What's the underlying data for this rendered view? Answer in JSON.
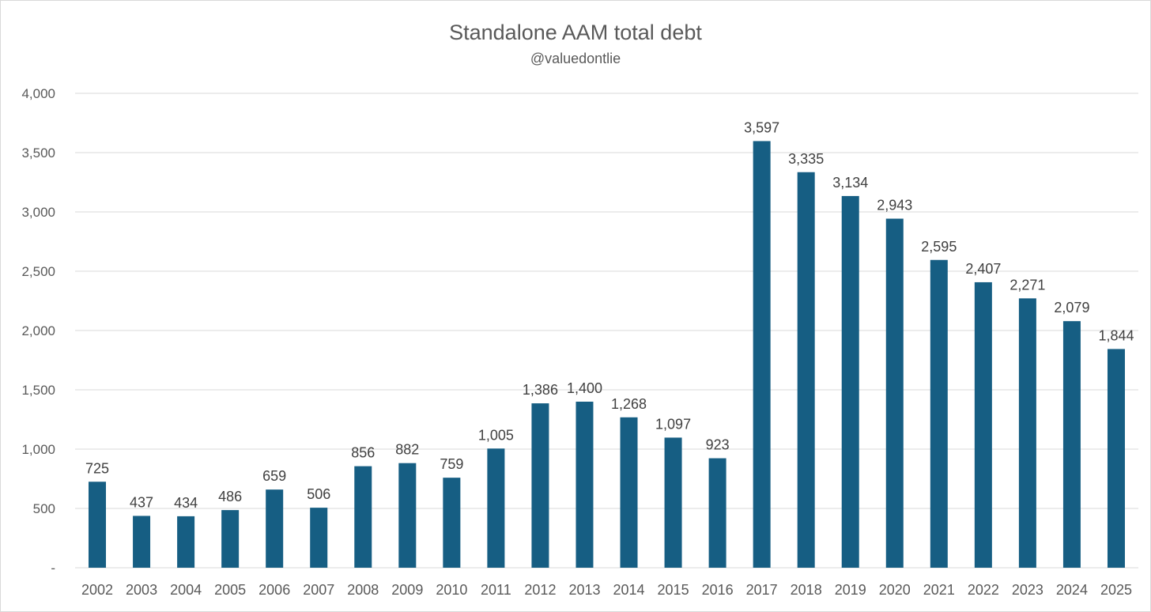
{
  "chart_data": {
    "type": "bar",
    "title": "Standalone AAM total debt",
    "subtitle": "@valuedontlie",
    "xlabel": "",
    "ylabel": "",
    "categories": [
      "2002",
      "2003",
      "2004",
      "2005",
      "2006",
      "2007",
      "2008",
      "2009",
      "2010",
      "2011",
      "2012",
      "2013",
      "2014",
      "2015",
      "2016",
      "2017",
      "2018",
      "2019",
      "2020",
      "2021",
      "2022",
      "2023",
      "2024",
      "2025"
    ],
    "values": [
      725,
      437,
      434,
      486,
      659,
      506,
      856,
      882,
      759,
      1005,
      1386,
      1400,
      1268,
      1097,
      923,
      3597,
      3335,
      3134,
      2943,
      2595,
      2407,
      2271,
      2079,
      1844
    ],
    "data_labels": [
      "725",
      "437",
      "434",
      "486",
      "659",
      "506",
      "856",
      "882",
      "759",
      "1,005",
      "1,386",
      "1,400",
      "1,268",
      "1,097",
      "923",
      "3,597",
      "3,335",
      "3,134",
      "2,943",
      "2,595",
      "2,407",
      "2,271",
      "2,079",
      "1,844"
    ],
    "ylim": [
      0,
      4000
    ],
    "yticks": [
      0,
      500,
      1000,
      1500,
      2000,
      2500,
      3000,
      3500,
      4000
    ],
    "ytick_labels": [
      "-",
      "500",
      "1,000",
      "1,500",
      "2,000",
      "2,500",
      "3,000",
      "3,500",
      "4,000"
    ],
    "grid": true,
    "legend": "none",
    "bar_color": "#165E83"
  }
}
